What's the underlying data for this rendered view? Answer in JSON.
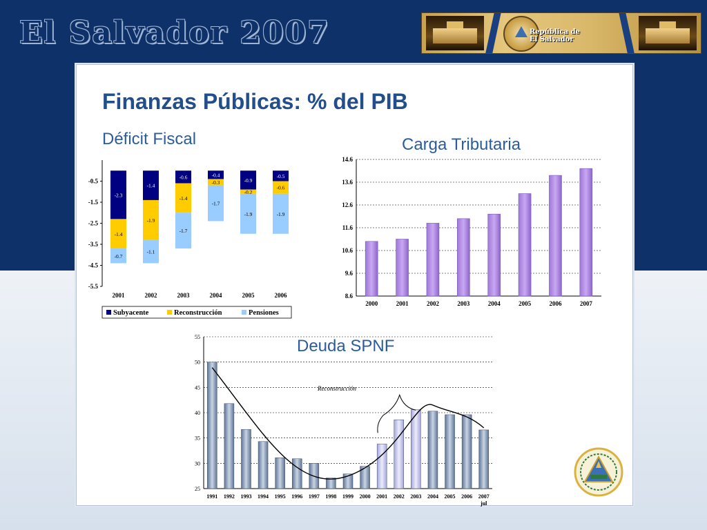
{
  "banner": {
    "title": "El Salvador 2007",
    "caption": "República de\nEl Salvador"
  },
  "slide": {
    "title": "Finanzas Públicas: % del PIB"
  },
  "colors": {
    "navy": "#0d3168",
    "subyacente": "#000080",
    "reconstruccion": "#ffcc00",
    "pensiones": "#99ccff",
    "purple_bar": "#c9a8f2",
    "deuda_bar": "#8ea3c0",
    "deuda_recon_bar": "#c8c8f0"
  },
  "chart_data": [
    {
      "id": "deficit",
      "type": "bar",
      "stacked": true,
      "title": "Déficit Fiscal",
      "categories": [
        "2001",
        "2002",
        "2003",
        "2004",
        "2005",
        "2006"
      ],
      "series": [
        {
          "name": "Subyacente",
          "values": [
            -2.3,
            -1.4,
            -0.6,
            -0.4,
            -0.9,
            -0.5
          ],
          "labels": [
            "-2.3",
            "-1.4",
            "-0.6",
            "-0.4",
            "-0.9",
            "-0.5"
          ]
        },
        {
          "name": "Reconstrucción",
          "values": [
            -1.4,
            -1.9,
            -1.4,
            -0.3,
            -0.2,
            -0.6
          ],
          "labels": [
            "-1.4",
            "-1.9",
            "-1.4",
            "-0.3",
            "-0.2",
            "-0.6"
          ]
        },
        {
          "name": "Pensiones",
          "values": [
            -0.7,
            -1.1,
            -1.7,
            -1.7,
            -1.9,
            -1.9
          ],
          "labels": [
            "-0.7",
            "-1.1",
            "-1.7",
            "-1.7",
            "-1.9",
            "-1.9"
          ]
        }
      ],
      "ylim": [
        -5.5,
        0.5
      ],
      "yticks": [
        -0.5,
        -1.5,
        -2.5,
        -3.5,
        -4.5,
        -5.5
      ],
      "ytick_labels": [
        "-0.5",
        "-1.5",
        "-2.5",
        "-3.5",
        "-4.5",
        "-5.5"
      ],
      "legend": "bottom",
      "grid": false
    },
    {
      "id": "carga",
      "type": "bar",
      "title": "Carga Tributaria",
      "categories": [
        "2000",
        "2001",
        "2002",
        "2003",
        "2004",
        "2005",
        "2006",
        "2007"
      ],
      "values": [
        11.0,
        11.1,
        11.8,
        12.0,
        12.2,
        13.1,
        13.9,
        14.2
      ],
      "ylim": [
        8.6,
        14.6
      ],
      "yticks": [
        8.6,
        9.6,
        10.6,
        11.6,
        12.6,
        13.6,
        14.6
      ],
      "ytick_labels": [
        "8.6",
        "9.6",
        "10.6",
        "11.6",
        "12.6",
        "13.6",
        "14.6"
      ],
      "grid": true
    },
    {
      "id": "deuda",
      "type": "bar",
      "title": "Deuda SPNF",
      "categories": [
        "1991",
        "1992",
        "1993",
        "1994",
        "1995",
        "1996",
        "1997",
        "1998",
        "1999",
        "2000",
        "2001",
        "2002",
        "2003",
        "2004",
        "2005",
        "2006",
        "2007"
      ],
      "category_sublabels": {
        "2007": "jul"
      },
      "values": [
        50,
        41.8,
        36.7,
        34.3,
        31.1,
        30.9,
        30.0,
        27.1,
        27.9,
        29.4,
        33.8,
        38.6,
        40.6,
        40.3,
        39.6,
        39.6,
        36.6
      ],
      "highlight_categories": [
        "2001",
        "2002",
        "2003"
      ],
      "ylim": [
        25,
        55
      ],
      "yticks": [
        25,
        30,
        35,
        40,
        45,
        50,
        55
      ],
      "ytick_labels": [
        "25",
        "30",
        "35",
        "40",
        "45",
        "50",
        "55"
      ],
      "annotation": "Reconstrucción",
      "trendline": true,
      "grid": true
    }
  ]
}
